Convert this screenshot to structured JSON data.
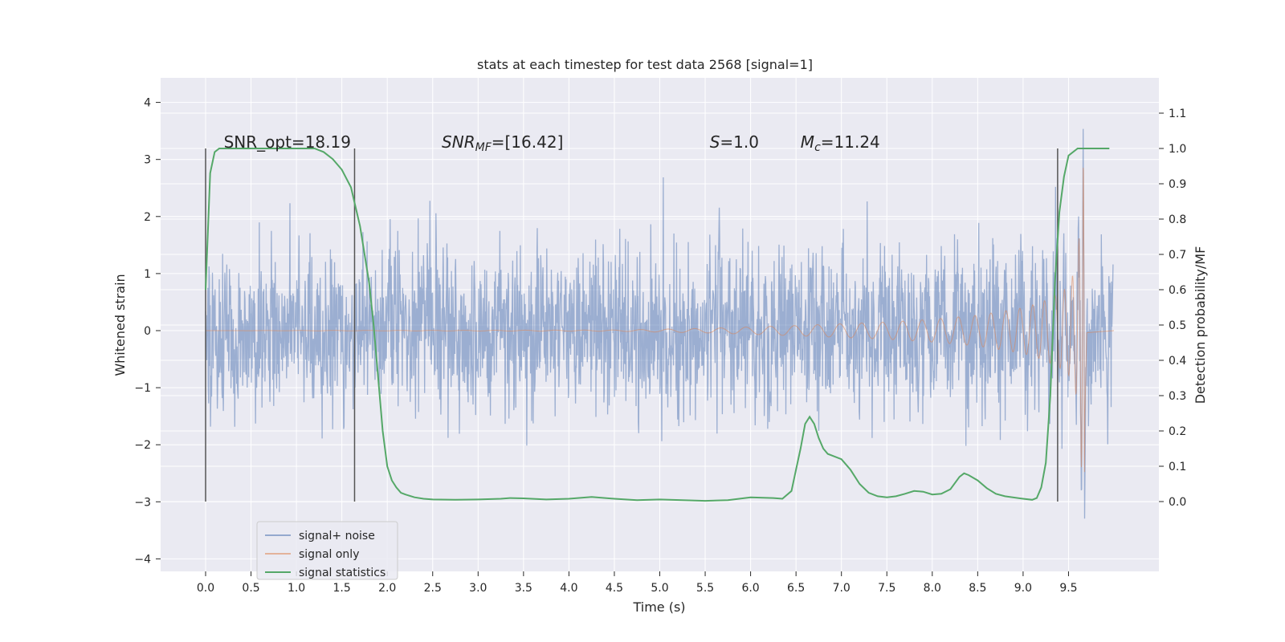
{
  "chart_data": {
    "type": "line",
    "title": "stats at each timestep for test data 2568 [signal=1]",
    "xlabel": "Time (s)",
    "ylabel": "Whitened strain",
    "y2label": "Detection probability/MF",
    "xlim": [
      -0.5,
      10.5
    ],
    "ylim": [
      -4.2,
      4.4
    ],
    "y2lim": [
      -0.2,
      1.18
    ],
    "x_ticks": [
      0.0,
      0.5,
      1.0,
      1.5,
      2.0,
      2.5,
      3.0,
      3.5,
      4.0,
      4.5,
      5.0,
      5.5,
      6.0,
      6.5,
      7.0,
      7.5,
      8.0,
      8.5,
      9.0,
      9.5
    ],
    "x_tick_labels": [
      "0.0",
      "0.5",
      "1.0",
      "1.5",
      "2.0",
      "2.5",
      "3.0",
      "3.5",
      "4.0",
      "4.5",
      "5.0",
      "5.5",
      "6.0",
      "6.5",
      "7.0",
      "7.5",
      "8.0",
      "8.5",
      "9.0",
      "9.5"
    ],
    "y_ticks": [
      -4,
      -3,
      -2,
      -1,
      0,
      1,
      2,
      3,
      4
    ],
    "y_tick_labels": [
      "−4",
      "−3",
      "−2",
      "−1",
      "0",
      "1",
      "2",
      "3",
      "4"
    ],
    "y2_ticks": [
      0.0,
      0.1,
      0.2,
      0.3,
      0.4,
      0.5,
      0.6,
      0.7,
      0.8,
      0.9,
      1.0,
      1.1
    ],
    "y2_tick_labels": [
      "0.0",
      "0.1",
      "0.2",
      "0.3",
      "0.4",
      "0.5",
      "0.6",
      "0.7",
      "0.8",
      "0.9",
      "1.0",
      "1.1"
    ],
    "grid": true,
    "legend_position": "lower-left",
    "annotations": [
      {
        "prefix": "SNR_opt=18.19",
        "italic": "",
        "sub": "",
        "suffix": "",
        "x": 0.2
      },
      {
        "prefix": "",
        "italic": "SNR",
        "sub": "MF",
        "suffix": "=[16.42]",
        "x": 2.6
      },
      {
        "prefix": "",
        "italic": "S",
        "sub": "",
        "suffix": "=1.0",
        "x": 5.55
      },
      {
        "prefix": "",
        "italic": "M",
        "sub": "c",
        "suffix": "=11.24",
        "x": 6.55
      }
    ],
    "vertical_markers": [
      0.0,
      1.64,
      9.38
    ],
    "series": [
      {
        "name": "signal+ noise",
        "color": "#4c72b0",
        "t_range": [
          0.0,
          9.99
        ],
        "noise_std": 0.72,
        "chirp_peak_t": 9.67,
        "chirp_peak_amp": 3.0
      },
      {
        "name": "signal only",
        "color": "#dd8452",
        "x": [
          0.0,
          4.5,
          5.5,
          6.5,
          7.0,
          7.5,
          8.0,
          8.5,
          9.0,
          9.2,
          9.4,
          9.5,
          9.6,
          9.67,
          9.7,
          10.0
        ],
        "envelope": [
          0.0,
          0.01,
          0.04,
          0.09,
          0.12,
          0.15,
          0.2,
          0.27,
          0.4,
          0.5,
          0.65,
          0.78,
          1.2,
          3.2,
          0.05,
          0.0
        ]
      },
      {
        "name": "signal statistics",
        "color": "#55a868",
        "axis": "right",
        "x": [
          0.0,
          0.05,
          0.1,
          0.15,
          0.25,
          0.4,
          0.6,
          0.8,
          1.0,
          1.2,
          1.3,
          1.4,
          1.5,
          1.6,
          1.7,
          1.8,
          1.85,
          1.9,
          1.95,
          2.0,
          2.05,
          2.1,
          2.15,
          2.2,
          2.3,
          2.4,
          2.5,
          2.75,
          3.0,
          3.25,
          3.35,
          3.5,
          3.75,
          4.0,
          4.25,
          4.5,
          4.75,
          5.0,
          5.25,
          5.5,
          5.75,
          6.0,
          6.25,
          6.35,
          6.45,
          6.5,
          6.55,
          6.6,
          6.65,
          6.7,
          6.75,
          6.8,
          6.85,
          6.9,
          7.0,
          7.1,
          7.2,
          7.3,
          7.4,
          7.5,
          7.6,
          7.7,
          7.8,
          7.9,
          8.0,
          8.1,
          8.2,
          8.3,
          8.35,
          8.4,
          8.5,
          8.6,
          8.7,
          8.8,
          9.0,
          9.1,
          9.15,
          9.2,
          9.25,
          9.3,
          9.35,
          9.4,
          9.45,
          9.5,
          9.6,
          9.75,
          9.95
        ],
        "y": [
          0.6,
          0.93,
          0.99,
          1.0,
          1.0,
          1.0,
          1.0,
          1.0,
          1.0,
          1.0,
          0.99,
          0.97,
          0.94,
          0.89,
          0.78,
          0.62,
          0.5,
          0.35,
          0.2,
          0.1,
          0.06,
          0.04,
          0.025,
          0.02,
          0.012,
          0.008,
          0.006,
          0.005,
          0.006,
          0.008,
          0.01,
          0.009,
          0.006,
          0.008,
          0.013,
          0.008,
          0.004,
          0.006,
          0.004,
          0.002,
          0.004,
          0.012,
          0.01,
          0.008,
          0.03,
          0.09,
          0.15,
          0.22,
          0.24,
          0.22,
          0.18,
          0.15,
          0.135,
          0.13,
          0.12,
          0.09,
          0.05,
          0.025,
          0.015,
          0.012,
          0.015,
          0.022,
          0.03,
          0.028,
          0.02,
          0.022,
          0.035,
          0.07,
          0.08,
          0.075,
          0.06,
          0.038,
          0.022,
          0.015,
          0.008,
          0.005,
          0.01,
          0.04,
          0.11,
          0.3,
          0.62,
          0.82,
          0.92,
          0.98,
          1.0,
          1.0,
          1.0
        ]
      }
    ]
  }
}
